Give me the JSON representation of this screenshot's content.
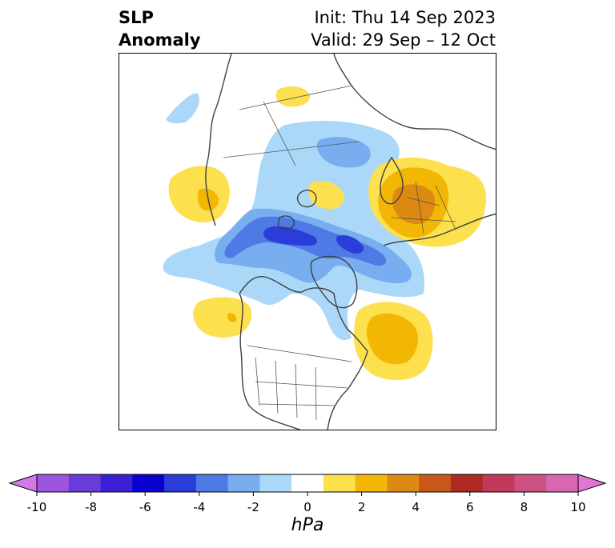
{
  "header": {
    "title_line1": "SLP",
    "title_line2": "Anomaly",
    "init": "Init: Thu 14 Sep 2023",
    "valid": "Valid: 29 Sep – 12 Oct"
  },
  "colorbar": {
    "ticks": [
      "-10",
      "-8",
      "-6",
      "-4",
      "-2",
      "0",
      "2",
      "4",
      "6",
      "8",
      "10"
    ],
    "colors": [
      "#d17ae8",
      "#9b55e0",
      "#6a3bd9",
      "#3c21d4",
      "#0a00d0",
      "#2a3dd8",
      "#4e7ae6",
      "#78aef0",
      "#abd8f8",
      "#ffffff",
      "#fde04e",
      "#f2b705",
      "#dd8a12",
      "#c8581a",
      "#b02a25",
      "#c23a5a",
      "#cc5283",
      "#d866b0",
      "#e574d7"
    ],
    "units": "hPa"
  },
  "map": {
    "projection": "north-polar-stereographic",
    "colors": {
      "light_blue": "#abd8f8",
      "mid_blue": "#78aef0",
      "blue": "#4e7ae6",
      "dark_blue": "#2a3dd8",
      "yellow": "#fde04e",
      "gold": "#f2b705",
      "orange": "#dd8a12",
      "coast": "#404040"
    }
  }
}
